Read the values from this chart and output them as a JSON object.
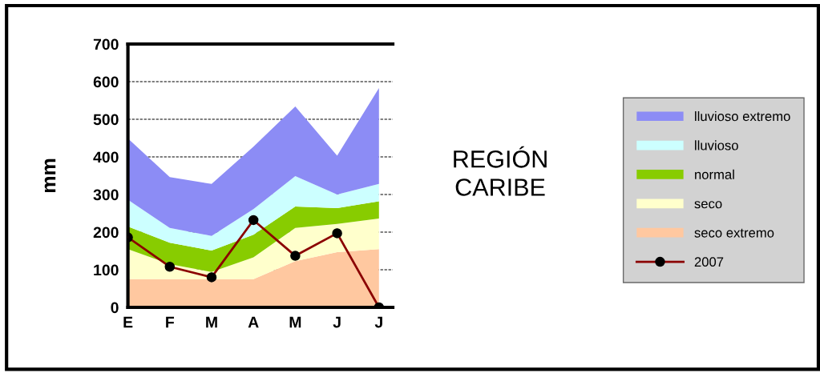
{
  "chart_data": {
    "type": "area",
    "stacked": true,
    "title": "REGIÓN\nCARIBE",
    "ylabel": "mm",
    "categories": [
      "E",
      "F",
      "M",
      "A",
      "M",
      "J",
      "J"
    ],
    "series": [
      {
        "name": "seco extremo",
        "color": "#ffc8a0",
        "values": [
          75,
          75,
          75,
          75,
          123,
          147,
          155
        ]
      },
      {
        "name": "seco",
        "color": "#ffffcc",
        "values": [
          80,
          40,
          19,
          58,
          88,
          75,
          81
        ]
      },
      {
        "name": "normal",
        "color": "#88cc00",
        "values": [
          60,
          57,
          57,
          60,
          57,
          42,
          46
        ]
      },
      {
        "name": "lluvioso",
        "color": "#ccffff",
        "values": [
          71,
          39,
          39,
          68,
          81,
          36,
          46
        ]
      },
      {
        "name": "lluvioso extremo",
        "color": "#8c8cf5",
        "values": [
          163,
          135,
          138,
          166,
          185,
          103,
          255
        ]
      },
      {
        "name": "2007",
        "type": "line",
        "marker": "circle",
        "color": "#8b0000",
        "values": [
          186,
          108,
          80,
          232,
          137,
          197,
          0
        ]
      }
    ],
    "ylim": [
      0,
      700
    ],
    "yticks": [
      0,
      100,
      200,
      300,
      400,
      500,
      600,
      700
    ],
    "grid": "y",
    "legend": "right",
    "line_style": "solid"
  }
}
